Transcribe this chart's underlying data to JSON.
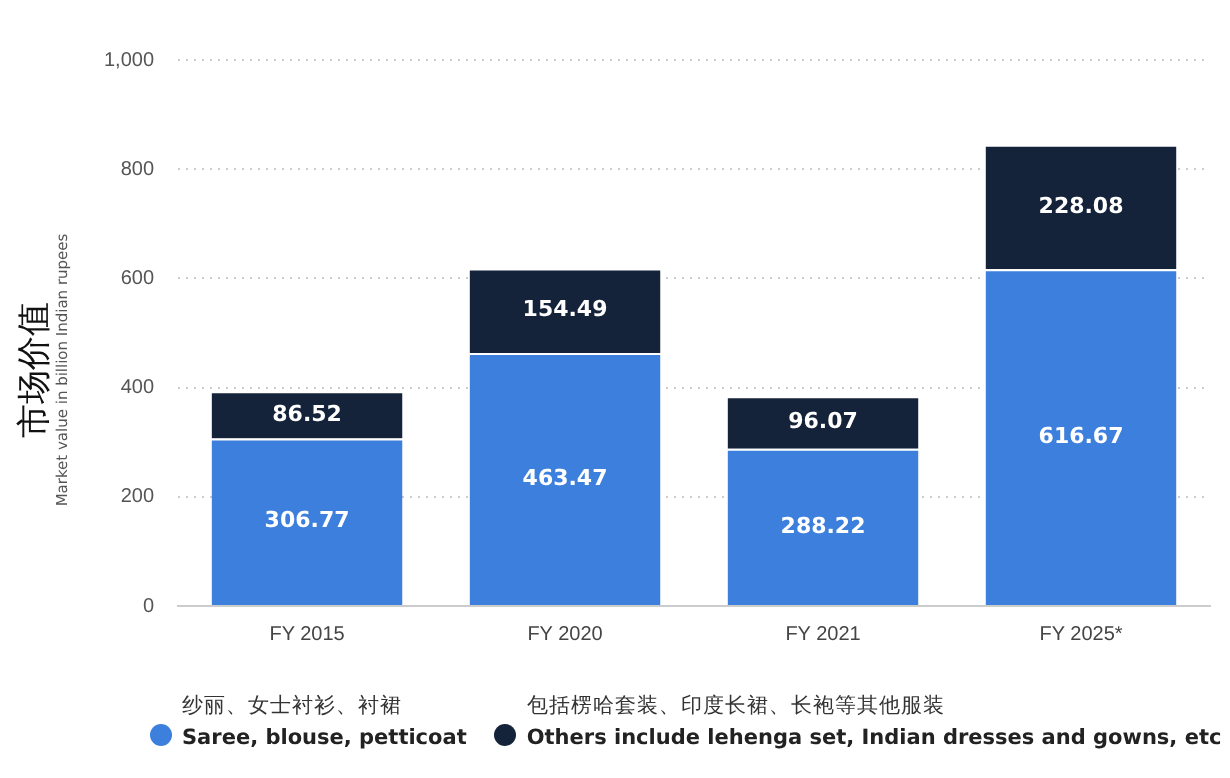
{
  "chart_data": {
    "type": "bar",
    "stacked": true,
    "ylabel": "市场价值\nMarket value in billion Indian rupees",
    "categories": [
      "FY 2015",
      "FY 2020",
      "FY 2021",
      "FY 2025*"
    ],
    "series": [
      {
        "name": "纱丽、女士衬衫、衬裙\nSaree, blouse, petticoat",
        "color": "#3d7fdc",
        "values": [
          306.77,
          463.47,
          288.22,
          616.67
        ]
      },
      {
        "name": "包括楞哈套装、印度长裙、长袍等其他服装\nOthers include lehenga set, Indian dresses and gowns, etc",
        "color": "#15233a",
        "values": [
          86.52,
          154.49,
          96.07,
          228.08
        ]
      }
    ],
    "ylim": [
      0,
      1000
    ],
    "yticks": [
      0,
      200,
      400,
      600,
      800,
      {
        "value": 1000,
        "label": "1,000"
      }
    ],
    "grid": "y",
    "legend": "bottom",
    "data_labels": true
  }
}
